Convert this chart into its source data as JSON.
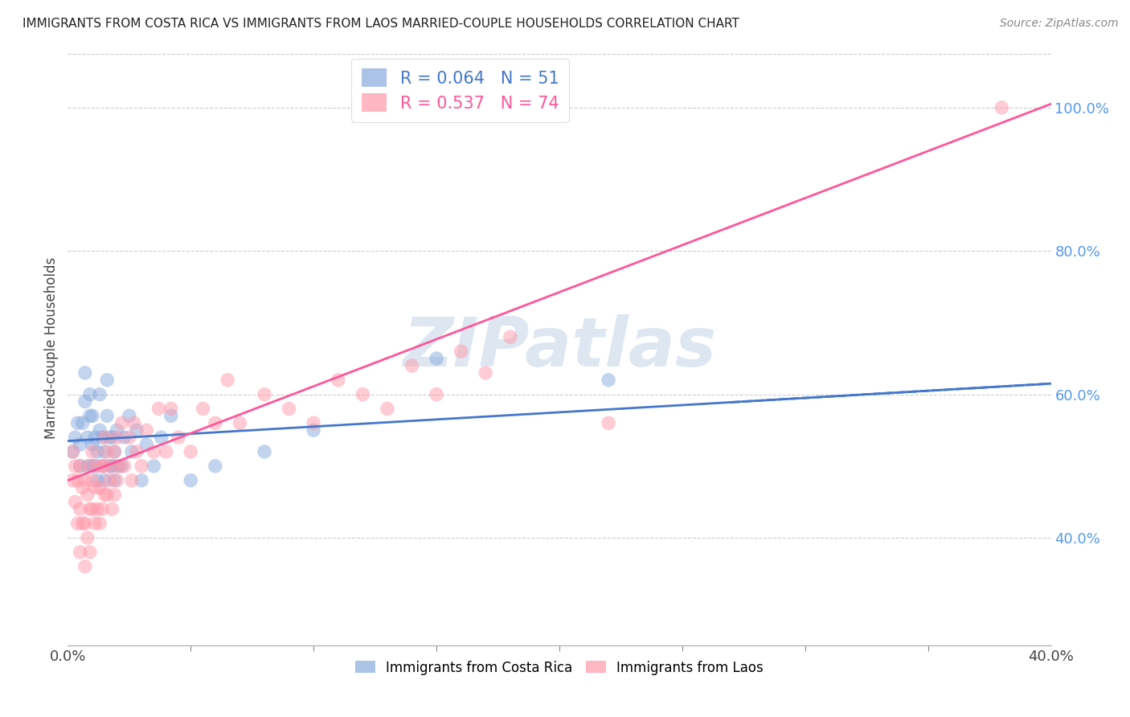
{
  "title": "IMMIGRANTS FROM COSTA RICA VS IMMIGRANTS FROM LAOS MARRIED-COUPLE HOUSEHOLDS CORRELATION CHART",
  "source": "Source: ZipAtlas.com",
  "ylabel": "Married-couple Households",
  "xlim": [
    0.0,
    0.4
  ],
  "ylim": [
    0.25,
    1.08
  ],
  "yticks": [
    0.4,
    0.6,
    0.8,
    1.0
  ],
  "ytick_labels": [
    "40.0%",
    "60.0%",
    "80.0%",
    "100.0%"
  ],
  "xtick_labels": [
    "0.0%",
    "40.0%"
  ],
  "xtick_pos": [
    0.0,
    0.4
  ],
  "legend_labels": [
    "Immigrants from Costa Rica",
    "Immigrants from Laos"
  ],
  "R_costa_rica": 0.064,
  "N_costa_rica": 51,
  "R_laos": 0.537,
  "N_laos": 74,
  "color_costa_rica": "#88AADE",
  "color_laos": "#FF99AA",
  "color_line_costa_rica": "#4477CC",
  "color_line_laos": "#FF5599",
  "watermark": "ZIPatlas",
  "watermark_color": "#C8D8E8",
  "line_cr_x0": 0.0,
  "line_cr_y0": 0.535,
  "line_cr_x1": 0.4,
  "line_cr_y1": 0.615,
  "line_laos_x0": 0.0,
  "line_laos_y0": 0.48,
  "line_laos_x1": 0.4,
  "line_laos_y1": 1.005,
  "costa_rica_x": [
    0.002,
    0.003,
    0.004,
    0.005,
    0.005,
    0.006,
    0.007,
    0.007,
    0.008,
    0.008,
    0.009,
    0.009,
    0.01,
    0.01,
    0.01,
    0.011,
    0.011,
    0.012,
    0.012,
    0.013,
    0.013,
    0.014,
    0.014,
    0.015,
    0.015,
    0.016,
    0.016,
    0.017,
    0.017,
    0.018,
    0.018,
    0.019,
    0.019,
    0.02,
    0.02,
    0.022,
    0.023,
    0.025,
    0.026,
    0.028,
    0.03,
    0.032,
    0.035,
    0.038,
    0.042,
    0.05,
    0.06,
    0.08,
    0.1,
    0.15,
    0.22
  ],
  "costa_rica_y": [
    0.52,
    0.54,
    0.56,
    0.5,
    0.53,
    0.56,
    0.59,
    0.63,
    0.5,
    0.54,
    0.57,
    0.6,
    0.5,
    0.53,
    0.57,
    0.5,
    0.54,
    0.48,
    0.52,
    0.55,
    0.6,
    0.5,
    0.54,
    0.48,
    0.52,
    0.57,
    0.62,
    0.5,
    0.54,
    0.5,
    0.54,
    0.48,
    0.52,
    0.5,
    0.55,
    0.5,
    0.54,
    0.57,
    0.52,
    0.55,
    0.48,
    0.53,
    0.5,
    0.54,
    0.57,
    0.48,
    0.5,
    0.52,
    0.55,
    0.65,
    0.62
  ],
  "laos_x": [
    0.002,
    0.002,
    0.003,
    0.003,
    0.004,
    0.004,
    0.005,
    0.005,
    0.005,
    0.006,
    0.006,
    0.007,
    0.007,
    0.007,
    0.008,
    0.008,
    0.009,
    0.009,
    0.009,
    0.01,
    0.01,
    0.01,
    0.011,
    0.011,
    0.012,
    0.012,
    0.013,
    0.013,
    0.014,
    0.014,
    0.015,
    0.015,
    0.015,
    0.016,
    0.016,
    0.017,
    0.018,
    0.018,
    0.019,
    0.019,
    0.02,
    0.02,
    0.021,
    0.022,
    0.023,
    0.025,
    0.026,
    0.027,
    0.028,
    0.03,
    0.032,
    0.035,
    0.037,
    0.04,
    0.042,
    0.045,
    0.05,
    0.055,
    0.06,
    0.065,
    0.07,
    0.08,
    0.09,
    0.1,
    0.11,
    0.12,
    0.13,
    0.14,
    0.15,
    0.16,
    0.17,
    0.18,
    0.22,
    0.38
  ],
  "laos_y": [
    0.48,
    0.52,
    0.45,
    0.5,
    0.42,
    0.48,
    0.38,
    0.44,
    0.5,
    0.42,
    0.47,
    0.36,
    0.42,
    0.48,
    0.4,
    0.46,
    0.38,
    0.44,
    0.5,
    0.44,
    0.48,
    0.52,
    0.42,
    0.47,
    0.44,
    0.5,
    0.42,
    0.47,
    0.44,
    0.5,
    0.46,
    0.5,
    0.54,
    0.46,
    0.52,
    0.48,
    0.44,
    0.5,
    0.46,
    0.52,
    0.48,
    0.54,
    0.5,
    0.56,
    0.5,
    0.54,
    0.48,
    0.56,
    0.52,
    0.5,
    0.55,
    0.52,
    0.58,
    0.52,
    0.58,
    0.54,
    0.52,
    0.58,
    0.56,
    0.62,
    0.56,
    0.6,
    0.58,
    0.56,
    0.62,
    0.6,
    0.58,
    0.64,
    0.6,
    0.66,
    0.63,
    0.68,
    0.56,
    1.0
  ]
}
